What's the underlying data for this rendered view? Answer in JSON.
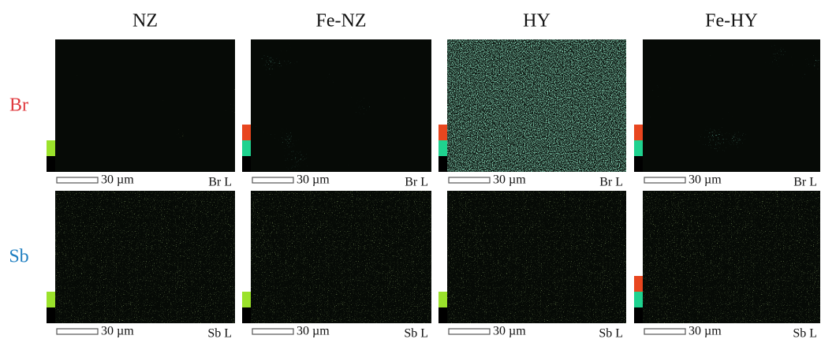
{
  "columns": [
    "NZ",
    "Fe-NZ",
    "HY",
    "Fe-HY"
  ],
  "rows": [
    {
      "label": "Br",
      "panels": [
        {
          "scale": "30 µm",
          "map": "Br L"
        },
        {
          "scale": "30 µm",
          "map": "Br L"
        },
        {
          "scale": "30 µm",
          "map": "Br L"
        },
        {
          "scale": "30 µm",
          "map": "Br L"
        }
      ]
    },
    {
      "label": "Sb",
      "panels": [
        {
          "scale": "30 µm",
          "map": "Sb L"
        },
        {
          "scale": "30 µm",
          "map": "Sb L"
        },
        {
          "scale": "30 µm",
          "map": "Sb L"
        },
        {
          "scale": "30 µm",
          "map": "Sb L"
        }
      ]
    }
  ]
}
